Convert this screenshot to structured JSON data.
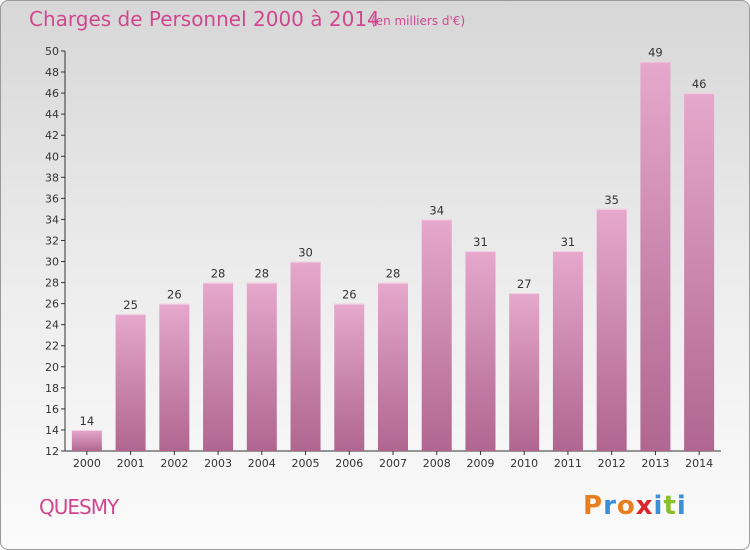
{
  "header": {
    "title": "Charges de Personnel 2000 à 2014",
    "unit_note": "(en milliers d'€)"
  },
  "footer": {
    "commune": "QUESMY",
    "logo_text": "Proxiti",
    "logo_colors": [
      "#e87e1e",
      "#3b8fd6",
      "#e87e1e",
      "#d9262b",
      "#3b8fd6",
      "#8bbf2a",
      "#3b8fd6"
    ]
  },
  "colors": {
    "bar_top": "#e6a8cc",
    "bar_bottom": "#b06690",
    "title": "#d1478f"
  },
  "chart_data": {
    "type": "bar",
    "title": "Charges de Personnel 2000 à 2014",
    "subtitle": "(en milliers d'€)",
    "categories": [
      "2000",
      "2001",
      "2002",
      "2003",
      "2004",
      "2005",
      "2006",
      "2007",
      "2008",
      "2009",
      "2010",
      "2011",
      "2012",
      "2013",
      "2014"
    ],
    "values": [
      14,
      25,
      26,
      28,
      28,
      30,
      26,
      28,
      34,
      31,
      27,
      31,
      35,
      49,
      46
    ],
    "xlabel": "",
    "ylabel": "",
    "ylim": [
      12,
      50
    ],
    "yticks": [
      12,
      14,
      16,
      18,
      20,
      22,
      24,
      26,
      28,
      30,
      32,
      34,
      36,
      38,
      40,
      42,
      44,
      46,
      48,
      50
    ],
    "grid": false,
    "legend": "none"
  }
}
